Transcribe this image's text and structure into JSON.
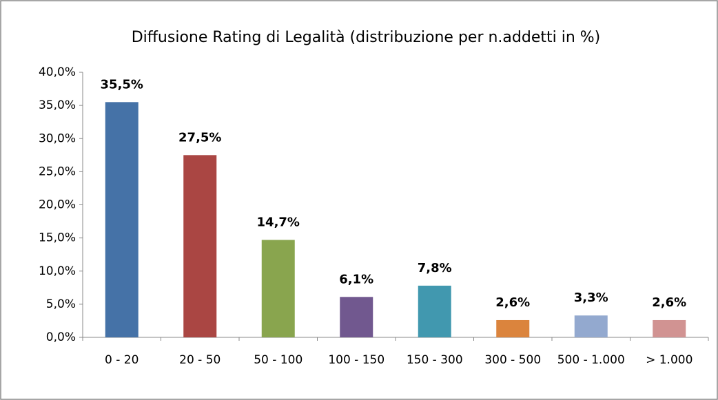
{
  "chart_data": {
    "type": "bar",
    "title": "Diffusione Rating di Legalità (distribuzione per n.addetti in %)",
    "categories": [
      "0 - 20",
      "20 - 50",
      "50 - 100",
      "100 - 150",
      "150 - 300",
      "300 - 500",
      "500 - 1.000",
      "> 1.000"
    ],
    "values": [
      35.5,
      27.5,
      14.7,
      6.1,
      7.8,
      2.6,
      3.3,
      2.6
    ],
    "value_labels": [
      "35,5%",
      "27,5%",
      "14,7%",
      "6,1%",
      "7,8%",
      "2,6%",
      "3,3%",
      "2,6%"
    ],
    "colors": [
      "#4572a7",
      "#aa4643",
      "#89a54e",
      "#71588f",
      "#4198af",
      "#db843d",
      "#93a9cf",
      "#d19392"
    ],
    "ylim": [
      0,
      40
    ],
    "yticks": [
      {
        "value": 0,
        "label": "0,0%"
      },
      {
        "value": 5,
        "label": "5,0%"
      },
      {
        "value": 10,
        "label": "10,0%"
      },
      {
        "value": 15,
        "label": "15,0%"
      },
      {
        "value": 20,
        "label": "20,0%"
      },
      {
        "value": 25,
        "label": "25,0%"
      },
      {
        "value": 30,
        "label": "30,0%"
      },
      {
        "value": 35,
        "label": "35,0%"
      },
      {
        "value": 40,
        "label": "40,0%"
      }
    ],
    "grid": false
  }
}
